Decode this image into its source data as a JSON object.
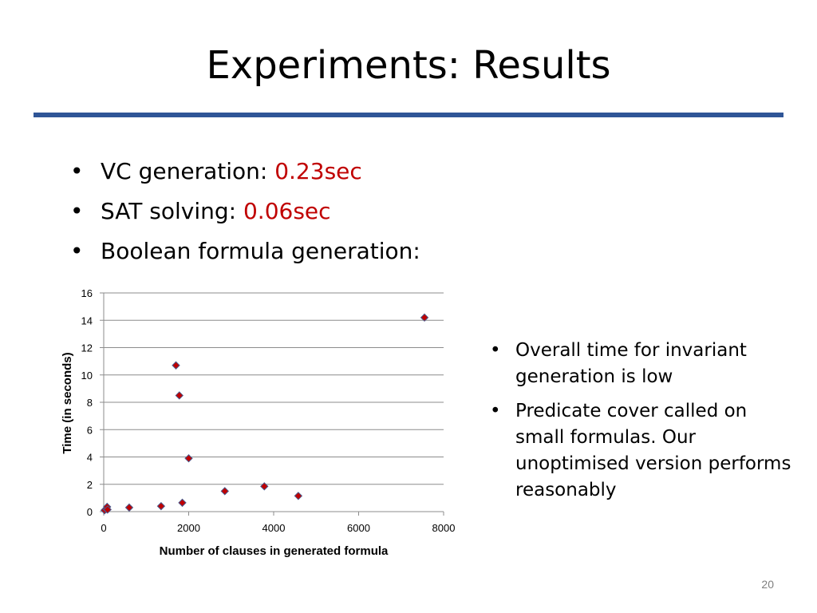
{
  "slide": {
    "title": "Experiments: Results",
    "page_number": "20",
    "accent_color": "#2f5597",
    "highlight_color": "#c00000"
  },
  "bullets": [
    {
      "label": "VC generation: ",
      "value": "0.23sec"
    },
    {
      "label": "SAT solving: ",
      "value": "0.06sec"
    },
    {
      "label": "Boolean formula generation:",
      "value": ""
    }
  ],
  "side_bullets": [
    "Overall time for invariant generation is low",
    "Predicate cover called on small formulas. Our unoptimised version performs reasonably"
  ],
  "chart_data": {
    "type": "scatter",
    "xlabel": "Number of clauses in generated formula",
    "ylabel": "Time (in seconds)",
    "xlim": [
      0,
      8000
    ],
    "ylim": [
      0,
      16
    ],
    "xticks": [
      0,
      2000,
      4000,
      6000,
      8000
    ],
    "yticks": [
      0,
      2,
      4,
      6,
      8,
      10,
      12,
      14,
      16
    ],
    "grid": "horizontal",
    "marker": "diamond",
    "marker_color": "#c00000",
    "marker_edge_color": "#4a5a8c",
    "points": [
      {
        "x": 20,
        "y": 0.1
      },
      {
        "x": 60,
        "y": 0.2
      },
      {
        "x": 80,
        "y": 0.35
      },
      {
        "x": 90,
        "y": 0.15
      },
      {
        "x": 600,
        "y": 0.3
      },
      {
        "x": 1350,
        "y": 0.4
      },
      {
        "x": 1700,
        "y": 10.7
      },
      {
        "x": 1780,
        "y": 8.5
      },
      {
        "x": 1850,
        "y": 0.65
      },
      {
        "x": 2000,
        "y": 3.9
      },
      {
        "x": 2850,
        "y": 1.5
      },
      {
        "x": 3780,
        "y": 1.85
      },
      {
        "x": 4580,
        "y": 1.15
      },
      {
        "x": 7550,
        "y": 14.2
      }
    ]
  }
}
